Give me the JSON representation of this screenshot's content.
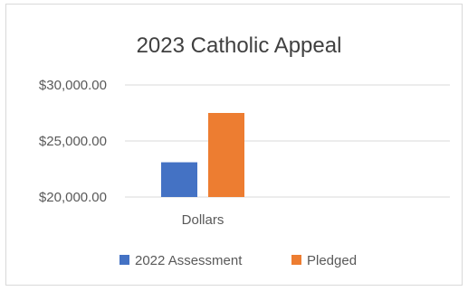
{
  "chart_data": {
    "type": "bar",
    "title": "2023 Catholic Appeal",
    "categories": [
      "Dollars"
    ],
    "series": [
      {
        "name": "2022 Assessment",
        "values": [
          23100
        ],
        "color": "#4472c4"
      },
      {
        "name": "Pledged",
        "values": [
          27500
        ],
        "color": "#ed7d31"
      }
    ],
    "ylim": [
      20000,
      30000
    ],
    "yticks": [
      {
        "value": 30000,
        "label": "$30,000.00"
      },
      {
        "value": 25000,
        "label": "$25,000.00"
      },
      {
        "value": 20000,
        "label": "$20,000.00"
      }
    ],
    "grid": true,
    "legend_position": "bottom",
    "gridline_color": "#d9d9d9"
  }
}
